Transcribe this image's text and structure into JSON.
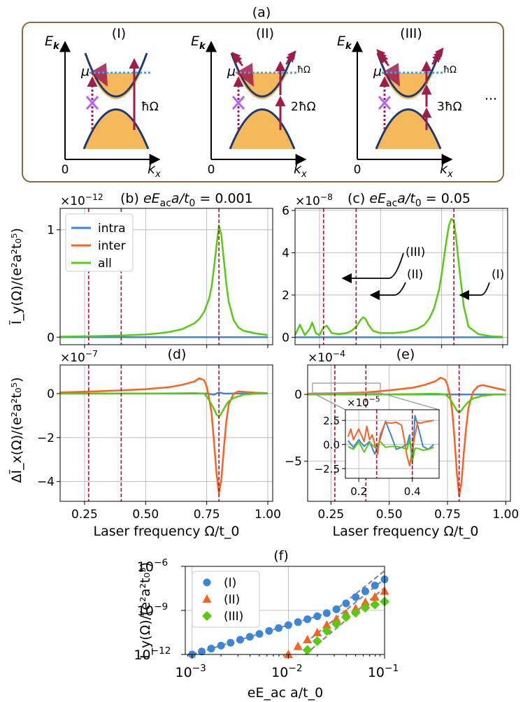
{
  "figure_label": "(a)",
  "schematic": {
    "panels": [
      {
        "label": "(I)",
        "photon": "ħΩ"
      },
      {
        "label": "(II)",
        "photon": "2ħΩ",
        "small_photon": "ħΩ"
      },
      {
        "label": "(III)",
        "photon": "3ħΩ",
        "small_photon": "ħΩ"
      }
    ],
    "y_axis": "E",
    "y_axis_sub": "k",
    "x_axis": "k",
    "x_axis_sub": "x",
    "origin": "0",
    "chem_potential": "μ",
    "ellipsis": "···"
  },
  "colors": {
    "intra": "#3b86d8",
    "inter": "#ff6020",
    "all": "#55cc10",
    "vline": "#b0102a",
    "band_fill": "#f5b85a",
    "band_line": "#1f3b6e",
    "box_border": "#8a6a3c",
    "arrow": "#a01c4a",
    "cross": "#b860ff",
    "mu_line": "#4aa0e0"
  },
  "chart_data": [
    {
      "id": "b",
      "type": "line",
      "title": "(b) eE_ac a/t_0 = 0.001",
      "title_text": "(b) ",
      "param": "0.001",
      "scale_prefix": "×10",
      "scale_exp": "−12",
      "ylabel": "Ĩ_y(Ω)/(e²a²t₀⁵)",
      "xlim": [
        0.15,
        1.02
      ],
      "ylim": [
        -0.07,
        1.2
      ],
      "yticks": [
        0,
        1
      ],
      "ytick_labels": [
        "0",
        "1"
      ],
      "vlines": [
        0.2667,
        0.4,
        0.8
      ],
      "legend": [
        "intra",
        "inter",
        "all"
      ],
      "series": [
        {
          "name": "intra",
          "x": [
            0.15,
            1.0
          ],
          "y": [
            0,
            0
          ]
        },
        {
          "name": "all",
          "x": [
            0.15,
            0.3,
            0.4,
            0.5,
            0.55,
            0.6,
            0.65,
            0.7,
            0.72,
            0.74,
            0.76,
            0.77,
            0.78,
            0.79,
            0.8,
            0.81,
            0.82,
            0.83,
            0.84,
            0.86,
            0.88,
            0.9,
            0.95,
            1.0
          ],
          "y": [
            0.005,
            0.01,
            0.015,
            0.025,
            0.035,
            0.05,
            0.075,
            0.13,
            0.17,
            0.24,
            0.36,
            0.47,
            0.65,
            0.85,
            1.04,
            0.95,
            0.72,
            0.5,
            0.33,
            0.16,
            0.09,
            0.06,
            0.035,
            0.02
          ]
        }
      ]
    },
    {
      "id": "c",
      "type": "line",
      "title": "(c) eE_ac a/t_0 = 0.05",
      "title_text": "(c) ",
      "param": "0.05",
      "scale_prefix": "×10",
      "scale_exp": "−8",
      "xlim": [
        0.15,
        1.02
      ],
      "ylim": [
        -0.35,
        6.1
      ],
      "yticks": [
        0,
        2,
        4,
        6
      ],
      "ytick_labels": [
        "0",
        "2",
        "4",
        "6"
      ],
      "vlines": [
        0.2667,
        0.4,
        0.8
      ],
      "annotations": [
        "(III)",
        "(II)",
        "(I)"
      ],
      "series": [
        {
          "name": "intra",
          "x": [
            0.15,
            1.0
          ],
          "y": [
            0,
            0
          ]
        },
        {
          "name": "all",
          "x": [
            0.15,
            0.17,
            0.19,
            0.2,
            0.21,
            0.22,
            0.235,
            0.25,
            0.265,
            0.28,
            0.3,
            0.33,
            0.36,
            0.38,
            0.4,
            0.42,
            0.43,
            0.44,
            0.45,
            0.47,
            0.5,
            0.55,
            0.6,
            0.65,
            0.68,
            0.7,
            0.72,
            0.74,
            0.75,
            0.76,
            0.77,
            0.78,
            0.79,
            0.8,
            0.81,
            0.82,
            0.83,
            0.84,
            0.86,
            0.9,
            0.95,
            1.0
          ],
          "y": [
            0.1,
            0.6,
            0.1,
            0.25,
            0.4,
            0.7,
            0.2,
            0.1,
            0.45,
            0.55,
            0.2,
            0.15,
            0.2,
            0.3,
            0.5,
            0.85,
            0.95,
            0.85,
            0.6,
            0.3,
            0.2,
            0.2,
            0.25,
            0.4,
            0.6,
            0.9,
            1.4,
            2.3,
            3.0,
            3.8,
            4.6,
            5.3,
            5.6,
            5.5,
            4.6,
            3.5,
            2.5,
            1.5,
            0.5,
            0.15,
            0.05,
            0.02
          ]
        }
      ]
    },
    {
      "id": "d",
      "type": "line",
      "title": "(d)",
      "scale_prefix": "×10",
      "scale_exp": "−7",
      "ylabel": "ΔĨ_x(Ω)/(e²a²t₀⁵)",
      "xlabel": "Laser frequency Ω/t_0",
      "xlim": [
        0.15,
        1.02
      ],
      "ylim": [
        -4.9,
        1.3
      ],
      "xticks": [
        0.25,
        0.5,
        0.75,
        1.0
      ],
      "xtick_labels": [
        "0.25",
        "0.50",
        "0.75",
        "1.00"
      ],
      "yticks": [
        0,
        -2,
        -4
      ],
      "ytick_labels": [
        "0",
        "−2",
        "−4"
      ],
      "vlines": [
        0.2667,
        0.4,
        0.8
      ],
      "series": [
        {
          "name": "intra",
          "x": [
            0.15,
            0.7,
            0.75,
            0.78,
            0.8,
            0.82,
            0.85,
            0.9,
            1.0
          ],
          "y": [
            0,
            0,
            0,
            -0.05,
            0.05,
            0,
            0,
            0,
            0
          ]
        },
        {
          "name": "inter",
          "x": [
            0.15,
            0.3,
            0.4,
            0.5,
            0.6,
            0.65,
            0.7,
            0.72,
            0.74,
            0.75,
            0.76,
            0.77,
            0.78,
            0.79,
            0.8,
            0.81,
            0.82,
            0.83,
            0.84,
            0.86,
            0.88,
            0.9,
            0.95,
            1.0
          ],
          "y": [
            0.05,
            0.1,
            0.15,
            0.2,
            0.3,
            0.4,
            0.55,
            0.7,
            0.6,
            0.3,
            -0.2,
            -0.9,
            -2.2,
            -3.6,
            -4.55,
            -3.9,
            -2.5,
            -1.3,
            -0.5,
            0.0,
            0.1,
            0.08,
            0.04,
            0.02
          ]
        },
        {
          "name": "all",
          "x": [
            0.15,
            0.5,
            0.7,
            0.74,
            0.76,
            0.78,
            0.79,
            0.8,
            0.81,
            0.82,
            0.83,
            0.84,
            0.86,
            0.9,
            0.95,
            1.0
          ],
          "y": [
            0,
            0,
            0.02,
            0.0,
            -0.3,
            -0.7,
            -0.95,
            -1.05,
            -0.9,
            -0.7,
            -0.5,
            -0.35,
            -0.2,
            -0.05,
            0,
            0
          ]
        }
      ]
    },
    {
      "id": "e",
      "type": "line",
      "title": "(e)",
      "scale_prefix": "×10",
      "scale_exp": "−4",
      "xlabel": "Laser frequency Ω/t_0",
      "xlim": [
        0.15,
        1.02
      ],
      "ylim": [
        -8.0,
        2.2
      ],
      "xticks": [
        0.25,
        0.5,
        0.75,
        1.0
      ],
      "xtick_labels": [
        "0.25",
        "0.50",
        "0.75",
        "1.00"
      ],
      "yticks": [
        0,
        -5
      ],
      "ytick_labels": [
        "0",
        "−5"
      ],
      "vlines": [
        0.2667,
        0.4,
        0.8
      ],
      "series": [
        {
          "name": "intra",
          "x": [
            0.15,
            1.0
          ],
          "y": [
            0,
            0
          ]
        },
        {
          "name": "inter",
          "x": [
            0.15,
            0.3,
            0.4,
            0.5,
            0.6,
            0.65,
            0.7,
            0.72,
            0.74,
            0.75,
            0.76,
            0.77,
            0.78,
            0.79,
            0.8,
            0.81,
            0.82,
            0.83,
            0.84,
            0.86,
            0.88,
            0.9,
            0.95,
            1.0
          ],
          "y": [
            0.05,
            0.1,
            0.15,
            0.3,
            0.5,
            0.7,
            1.0,
            1.25,
            1.1,
            0.7,
            0.0,
            -1.2,
            -3.3,
            -5.8,
            -7.6,
            -6.6,
            -4.4,
            -2.5,
            -1.0,
            0.2,
            0.6,
            0.7,
            0.5,
            0.3
          ]
        },
        {
          "name": "all",
          "x": [
            0.15,
            0.5,
            0.7,
            0.74,
            0.76,
            0.78,
            0.79,
            0.8,
            0.81,
            0.82,
            0.84,
            0.86,
            0.9,
            0.95,
            1.0
          ],
          "y": [
            0,
            0,
            0.05,
            0.0,
            -0.3,
            -0.9,
            -1.2,
            -1.35,
            -1.2,
            -0.95,
            -0.55,
            -0.3,
            -0.1,
            0,
            0
          ]
        }
      ]
    },
    {
      "id": "e_inset",
      "type": "line",
      "scale_prefix": "×10",
      "scale_exp": "−5",
      "xlim": [
        0.15,
        0.5
      ],
      "ylim": [
        -3.5,
        3.6
      ],
      "xticks": [
        0.2,
        0.4
      ],
      "xtick_labels": [
        "0.2",
        "0.4"
      ],
      "yticks": [
        2.5,
        0.0,
        -2.5
      ],
      "ytick_labels": [
        "2.5",
        "0.0",
        "−2.5"
      ],
      "vlines": [
        0.2667,
        0.4
      ],
      "series": [
        {
          "name": "intra",
          "x": [
            0.16,
            0.18,
            0.2,
            0.22,
            0.24,
            0.26,
            0.28,
            0.3,
            0.32,
            0.34,
            0.36,
            0.38,
            0.39,
            0.4,
            0.41,
            0.42,
            0.44,
            0.46,
            0.48
          ],
          "y": [
            0.4,
            -0.3,
            0.5,
            -0.2,
            0.3,
            -1.0,
            0.6,
            2.4,
            1.0,
            -0.5,
            -0.3,
            0.0,
            1.0,
            -2.0,
            3.0,
            2.0,
            -0.2,
            -0.5,
            0.0
          ]
        },
        {
          "name": "inter",
          "x": [
            0.16,
            0.17,
            0.18,
            0.2,
            0.22,
            0.23,
            0.24,
            0.25,
            0.26,
            0.27,
            0.28,
            0.3,
            0.32,
            0.34,
            0.36,
            0.37,
            0.38,
            0.39,
            0.4,
            0.41,
            0.42,
            0.43,
            0.44,
            0.46,
            0.48
          ],
          "y": [
            0.8,
            1.6,
            0.5,
            1.6,
            0.3,
            1.9,
            0.5,
            1.0,
            0.0,
            -1.0,
            1.0,
            2.3,
            2.2,
            2.3,
            2.0,
            0.5,
            -1.2,
            -2.2,
            -0.5,
            1.0,
            2.3,
            2.2,
            2.3,
            2.4,
            2.5
          ]
        },
        {
          "name": "all",
          "x": [
            0.16,
            0.18,
            0.2,
            0.22,
            0.24,
            0.26,
            0.28,
            0.3,
            0.32,
            0.34,
            0.36,
            0.38,
            0.39,
            0.4,
            0.41,
            0.42,
            0.44,
            0.46,
            0.48
          ],
          "y": [
            -0.2,
            -0.5,
            0.3,
            -0.8,
            0.2,
            -0.3,
            0.3,
            -0.3,
            -0.2,
            -0.2,
            -0.3,
            -0.5,
            0.5,
            -1.8,
            -0.4,
            -0.4,
            -0.6,
            -0.5,
            -0.3
          ]
        }
      ]
    },
    {
      "id": "f",
      "type": "scatter",
      "title": "(f)",
      "xlabel": "eE_ac a/t_0",
      "ylabel": "Ĩ_y(Ω)/(e²a²t₀⁵)",
      "xscale": "log",
      "yscale": "log",
      "xlim": [
        0.00085,
        0.1
      ],
      "ylim": [
        1e-12,
        1e-06
      ],
      "xtick_labels": [
        "10",
        "10",
        "10"
      ],
      "xtick_exps": [
        "−3",
        "−2",
        "−1"
      ],
      "ytick_labels": [
        "10",
        "10",
        "10"
      ],
      "ytick_exps": [
        "−12",
        "−9",
        "−6"
      ],
      "legend": [
        "(I)",
        "(II)",
        "(III)"
      ],
      "series": [
        {
          "name": "(I)",
          "marker": "circle",
          "x": [
            0.001,
            0.00126,
            0.00158,
            0.002,
            0.00251,
            0.00316,
            0.00398,
            0.00501,
            0.00631,
            0.00794,
            0.01,
            0.0126,
            0.0158,
            0.02,
            0.0251,
            0.0316,
            0.0398,
            0.0501,
            0.0631,
            0.0794,
            0.1
          ],
          "y": [
            1e-12,
            1.6e-12,
            2.5e-12,
            4e-12,
            6.3e-12,
            1e-11,
            1.6e-11,
            2.5e-11,
            4e-11,
            6.3e-11,
            1e-10,
            1.6e-10,
            2.5e-10,
            4e-10,
            6.5e-10,
            1.2e-09,
            3e-09,
            8e-09,
            2e-08,
            5e-08,
            1.3e-07
          ]
        },
        {
          "name": "(II)",
          "marker": "triangle",
          "x": [
            0.01,
            0.0126,
            0.0158,
            0.02,
            0.0251,
            0.0316,
            0.0398,
            0.0501,
            0.0631,
            0.0794,
            0.1
          ],
          "y": [
            1e-12,
            3.5e-12,
            1e-11,
            3e-11,
            1e-10,
            2.5e-10,
            6e-10,
            1.3e-09,
            3.5e-09,
            8e-09,
            2e-08
          ]
        },
        {
          "name": "(III)",
          "marker": "diamond",
          "x": [
            0.0158,
            0.02,
            0.0251,
            0.0316,
            0.0398,
            0.0501,
            0.0631,
            0.0794,
            0.1
          ],
          "y": [
            2e-12,
            8e-12,
            4e-11,
            1.2e-10,
            3.5e-10,
            7e-10,
            1.5e-09,
            2.5e-09,
            4e-09
          ]
        }
      ],
      "fit_lines": [
        {
          "x": [
            0.001,
            0.028
          ],
          "y": [
            1e-12,
            8e-10
          ]
        },
        {
          "x": [
            0.015,
            0.1
          ],
          "y": [
            1e-12,
            3.5e-08
          ]
        },
        {
          "x": [
            0.015,
            0.1
          ],
          "y": [
            6e-12,
            1.4e-07
          ]
        },
        {
          "x": [
            0.033,
            0.1
          ],
          "y": [
            1.5e-09,
            5e-07
          ]
        }
      ]
    }
  ]
}
